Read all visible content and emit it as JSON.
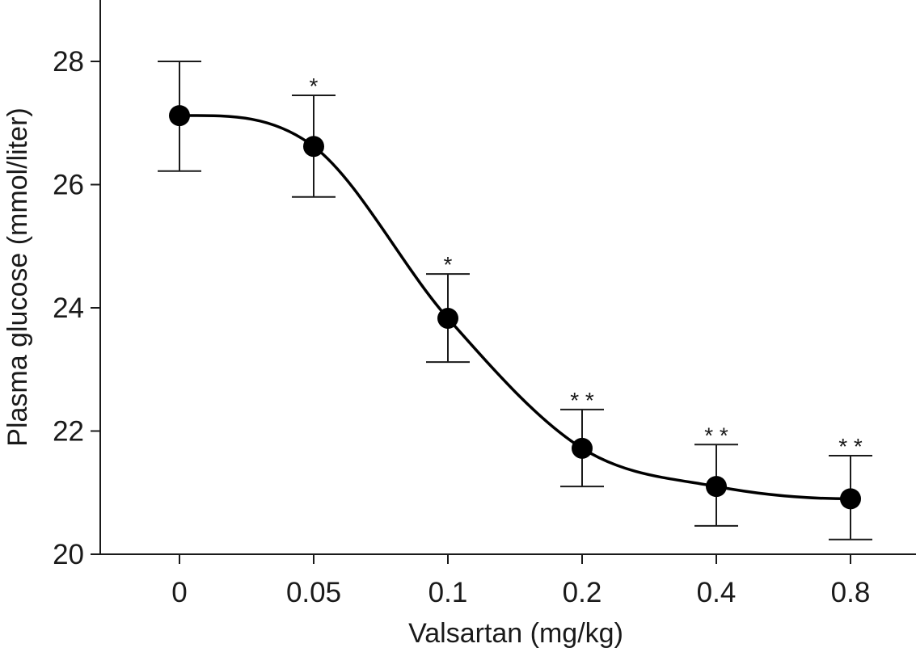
{
  "chart_data": {
    "type": "line",
    "xlabel": "Valsartan (mg/kg)",
    "ylabel": "Plasma glucose (mmol/liter)",
    "categories": [
      "0",
      "0.05",
      "0.1",
      "0.2",
      "0.4",
      "0.8"
    ],
    "y_ticks": [
      "20",
      "22",
      "24",
      "26",
      "28"
    ],
    "ylim": [
      20,
      29
    ],
    "series": [
      {
        "values": [
          27.12,
          26.62,
          23.83,
          21.72,
          21.1,
          20.9
        ],
        "error_upper": [
          28.0,
          27.45,
          24.55,
          22.35,
          21.78,
          21.6
        ],
        "error_lower": [
          26.22,
          25.8,
          23.12,
          21.1,
          20.46,
          20.24
        ],
        "significance": [
          "",
          "*",
          "*",
          "* *",
          "* *",
          "* *"
        ]
      }
    ],
    "fit_curve": "smooth sigmoid through points",
    "grid": false,
    "legend": "none",
    "colors": {
      "line": "#000000",
      "marker": "#000000",
      "axis": "#1a1a1a"
    }
  }
}
